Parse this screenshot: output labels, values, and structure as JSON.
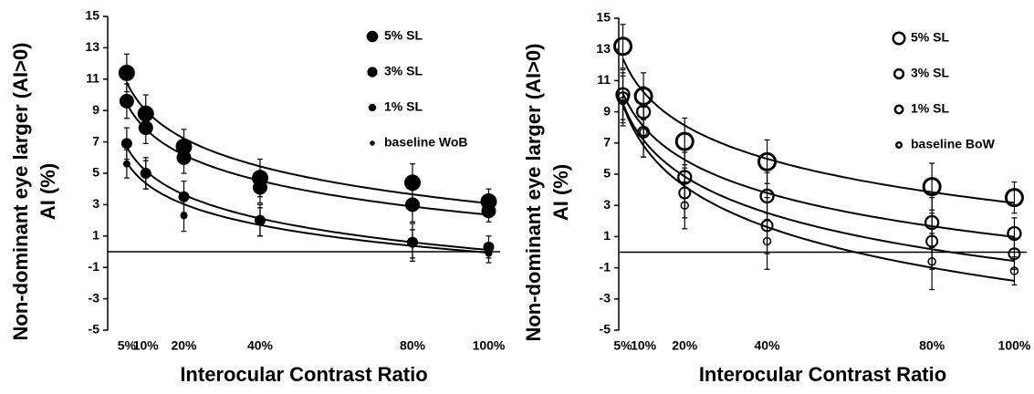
{
  "chart_data": [
    {
      "type": "scatter",
      "xlabel": "Interocular Contrast Ratio",
      "ylabel": [
        "Non-dominant eye larger (AI>0)",
        "AI (%)"
      ],
      "x": [
        5,
        10,
        20,
        40,
        80,
        100
      ],
      "xlim": [
        0,
        103
      ],
      "xticks": [
        {
          "value": 5,
          "label": "5%"
        },
        {
          "value": 10,
          "label": "10%"
        },
        {
          "value": 20,
          "label": "20%"
        },
        {
          "value": 40,
          "label": "40%"
        },
        {
          "value": 80,
          "label": "80%"
        },
        {
          "value": 100,
          "label": "100%"
        }
      ],
      "ylim": [
        -5,
        15
      ],
      "yticks": [
        -5,
        -3,
        -1,
        1,
        3,
        5,
        7,
        9,
        11,
        13,
        15
      ],
      "zero_line": true,
      "trendline": "log",
      "legend": "upper right",
      "series": [
        {
          "name": "5% SL",
          "color": "#000000",
          "marker": "filled",
          "marker_size": 9,
          "values": [
            11.4,
            8.8,
            6.7,
            4.7,
            4.4,
            3.2
          ],
          "errors": [
            1.2,
            1.2,
            1.1,
            1.2,
            1.2,
            0.8
          ]
        },
        {
          "name": "3% SL",
          "color": "#000000",
          "marker": "filled",
          "marker_size": 8,
          "values": [
            9.6,
            7.9,
            6.0,
            4.1,
            3.0,
            2.6
          ],
          "errors": [
            1.1,
            1.0,
            1.0,
            1.0,
            1.1,
            0.7
          ]
        },
        {
          "name": "1% SL",
          "color": "#000000",
          "marker": "filled",
          "marker_size": 6,
          "values": [
            6.9,
            5.0,
            3.5,
            2.0,
            0.6,
            0.3
          ],
          "errors": [
            1.0,
            1.0,
            1.0,
            1.0,
            1.2,
            0.7
          ]
        },
        {
          "name": "baseline WoB",
          "color": "#000000",
          "marker": "filled",
          "marker_size": 4,
          "values": [
            5.6,
            4.9,
            2.3,
            1.9,
            0.5,
            -0.1
          ],
          "errors": [
            0.9,
            0.9,
            1.0,
            0.9,
            0.9,
            0.6
          ]
        }
      ]
    },
    {
      "type": "scatter",
      "xlabel": "Interocular Contrast Ratio",
      "ylabel": [
        "Non-dominant eye larger (AI>0)",
        "AI (%)"
      ],
      "x": [
        5,
        10,
        20,
        40,
        80,
        100
      ],
      "xlim": [
        4,
        103
      ],
      "xticks": [
        {
          "value": 5,
          "label": "5%"
        },
        {
          "value": 10,
          "label": "10%"
        },
        {
          "value": 20,
          "label": "20%"
        },
        {
          "value": 40,
          "label": "40%"
        },
        {
          "value": 80,
          "label": "80%"
        },
        {
          "value": 100,
          "label": "100%"
        }
      ],
      "ylim": [
        -5,
        15
      ],
      "yticks": [
        -5,
        -3,
        -1,
        1,
        3,
        5,
        7,
        9,
        11,
        13,
        15
      ],
      "zero_line": true,
      "trendline": "log",
      "legend": "upper right",
      "series": [
        {
          "name": "5% SL",
          "color": "#000000",
          "marker": "open",
          "marker_size": 9,
          "values": [
            13.2,
            10.0,
            7.1,
            5.8,
            4.2,
            3.5
          ],
          "errors": [
            1.4,
            1.5,
            1.5,
            1.4,
            1.5,
            1.0
          ]
        },
        {
          "name": "3% SL",
          "color": "#000000",
          "marker": "open",
          "marker_size": 7,
          "values": [
            10.1,
            9.0,
            4.8,
            3.6,
            1.9,
            1.2
          ],
          "errors": [
            1.6,
            1.6,
            1.6,
            1.5,
            1.6,
            1.0
          ]
        },
        {
          "name": "1% SL",
          "color": "#000000",
          "marker": "open",
          "marker_size": 6,
          "values": [
            9.9,
            7.7,
            3.8,
            1.7,
            0.7,
            -0.1
          ],
          "errors": [
            1.6,
            1.6,
            1.6,
            1.8,
            1.8,
            1.0
          ]
        },
        {
          "name": "baseline BoW",
          "color": "#000000",
          "marker": "open",
          "marker_size": 4,
          "values": [
            9.7,
            7.7,
            3.0,
            0.7,
            -0.6,
            -1.2
          ],
          "errors": [
            1.6,
            1.6,
            1.5,
            1.8,
            1.8,
            0.9
          ]
        }
      ]
    }
  ]
}
